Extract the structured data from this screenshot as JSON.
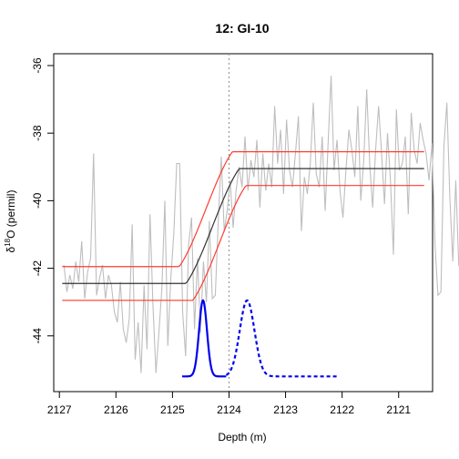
{
  "chart_data": {
    "type": "line",
    "title": "12: GI-10",
    "xlabel": "Depth (m)",
    "ylabel": "δ18O (permil)",
    "ylabel_parts": {
      "delta": "δ",
      "superscript": "18",
      "rest": "O (permil)"
    },
    "x_reversed": true,
    "xlim": [
      2127.1,
      2120.4
    ],
    "ylim": [
      -45.65,
      -35.65
    ],
    "x_ticks": [
      2127,
      2126,
      2125,
      2124,
      2123,
      2122,
      2121
    ],
    "x_tick_labels": [
      "2127",
      "2126",
      "2125",
      "2124",
      "2123",
      "2122",
      "2121"
    ],
    "y_ticks": [
      -44,
      -42,
      -40,
      -38,
      -36
    ],
    "y_tick_labels": [
      "-44",
      "-42",
      "-40",
      "-38",
      "-36"
    ],
    "grid": false,
    "vline_x": 2124.0,
    "colors": {
      "raw": "#bebebe",
      "fit": "#333333",
      "bounds": "#ff3b30",
      "density": "#0000ee",
      "vline": "#9a9a9a"
    },
    "raw_series": {
      "x_start": 2126.92,
      "x_step": -0.0525,
      "y": [
        -41.9,
        -42.7,
        -42.2,
        -42.6,
        -41.8,
        -42.4,
        -41.2,
        -42.9,
        -42.1,
        -41.7,
        -38.6,
        -42.8,
        -42.3,
        -41.9,
        -42.9,
        -42.2,
        -42.5,
        -43.3,
        -43.6,
        -42.4,
        -43.8,
        -44.2,
        -43.5,
        -40.7,
        -44.7,
        -43.6,
        -45.1,
        -42.5,
        -44.4,
        -40.4,
        -43.1,
        -45.1,
        -43.9,
        -42.6,
        -40.0,
        -44.3,
        -42.3,
        -41.0,
        -38.9,
        -38.9,
        -43.3,
        -44.6,
        -41.3,
        -40.5,
        -43.8,
        -41.7,
        -43.9,
        -41.8,
        -43.0,
        -40.6,
        -42.9,
        -42.8,
        -40.6,
        -38.7,
        -40.9,
        -40.3,
        -39.4,
        -40.8,
        -39.7,
        -39.0,
        -39.6,
        -38.1,
        -39.7,
        -38.8,
        -39.3,
        -38.2,
        -40.2,
        -38.6,
        -39.7,
        -38.9,
        -39.6,
        -37.2,
        -38.9,
        -37.9,
        -39.8,
        -37.6,
        -39.1,
        -39.6,
        -38.6,
        -37.5,
        -40.9,
        -39.3,
        -39.8,
        -38.9,
        -37.1,
        -39.2,
        -39.6,
        -38.1,
        -40.3,
        -38.3,
        -36.3,
        -39.1,
        -38.2,
        -39.7,
        -40.5,
        -39.1,
        -37.9,
        -38.5,
        -39.3,
        -37.2,
        -40.0,
        -38.8,
        -36.7,
        -38.9,
        -40.2,
        -38.5,
        -37.2,
        -38.6,
        -40.1,
        -38.0,
        -39.4,
        -41.6,
        -37.3,
        -39.1,
        -38.9,
        -38.1,
        -40.4,
        -37.4,
        -38.5,
        -38.9,
        -37.7,
        -38.2,
        -38.6,
        -39.4,
        -38.3,
        -41.3,
        -42.8,
        -42.7,
        -38.4,
        -37.1,
        -39.9,
        -41.8,
        -39.4,
        -41.9,
        -42.2,
        -41.7,
        -38.7,
        -42.2,
        -41.7
      ]
    },
    "ramp": {
      "x_start": 2124.76,
      "x_end": 2123.82,
      "y_start": -42.45,
      "y_end": -39.05,
      "sigma": 0.5,
      "x_from": 2126.95,
      "x_to": 2120.55
    },
    "density_solid": {
      "center": 2124.46,
      "sd": 0.07,
      "x_from": 2124.83,
      "x_to": 2124.05,
      "base_y": -45.2,
      "peak_y": -42.95
    },
    "density_dashed": {
      "center": 2123.68,
      "sd": 0.13,
      "x_from": 2124.05,
      "x_to": 2122.05,
      "base_y": -45.2,
      "peak_y": -42.95
    }
  }
}
